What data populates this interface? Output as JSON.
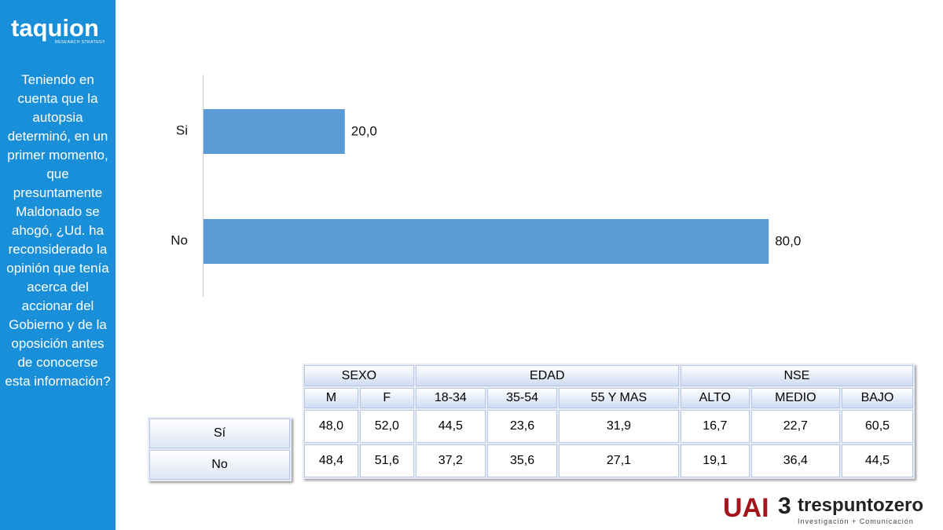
{
  "brand": {
    "name": "taquion",
    "tagline": "RESEARCH STRATEGY"
  },
  "question": "Teniendo en cuenta que la autopsia determinó, en un primer momento, que presuntamente Maldonado se ahogó, ¿Ud. ha reconsiderado la opinión que tenía acerca del accionar del Gobierno y de la oposición antes de conocerse esta información?",
  "chart_data": {
    "type": "hbar",
    "categories": [
      "Si",
      "No"
    ],
    "values": [
      20.0,
      80.0
    ],
    "value_labels": [
      "20,0",
      "80,0"
    ],
    "color": "#5b9bd5",
    "xlim": [
      0,
      100
    ]
  },
  "table": {
    "groups": [
      "SEXO",
      "EDAD",
      "NSE"
    ],
    "columns": [
      "M",
      "F",
      "18-34",
      "35-54",
      "55 Y MAS",
      "ALTO",
      "MEDIO",
      "BAJO"
    ],
    "row_labels": [
      "Sí",
      "No"
    ],
    "rows": [
      [
        "48,0",
        "52,0",
        "44,5",
        "23,6",
        "31,9",
        "16,7",
        "22,7",
        "60,5"
      ],
      [
        "48,4",
        "51,6",
        "37,2",
        "35,6",
        "27,1",
        "19,1",
        "36,4",
        "44,5"
      ]
    ]
  },
  "footer": {
    "logo1": "UAI",
    "logo2": "trespuntozero",
    "logo2_tagline": "Investigación + Comunicación"
  }
}
